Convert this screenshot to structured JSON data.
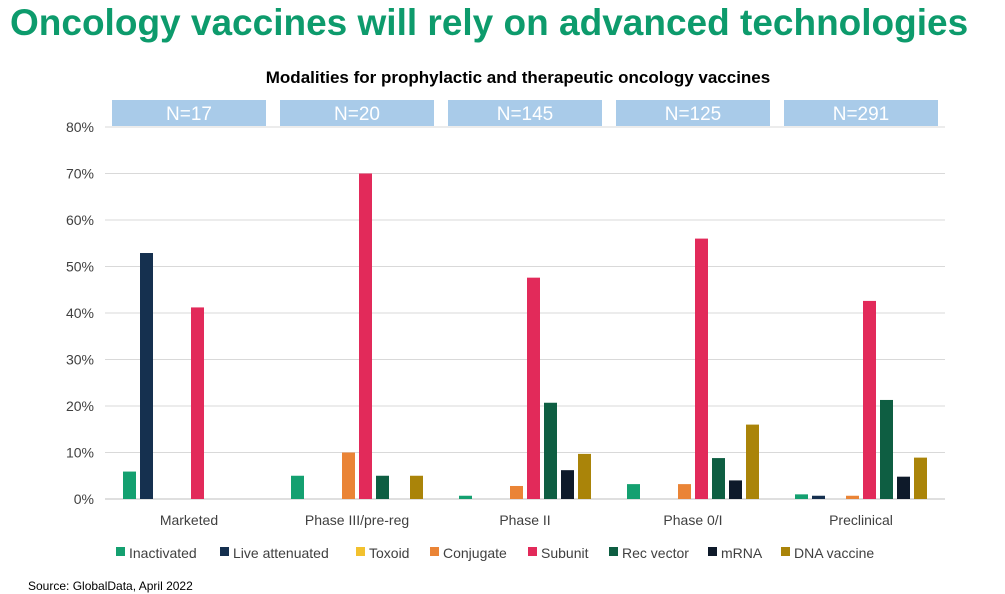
{
  "page": {
    "title": "Oncology vaccines will rely on advanced technologies",
    "source": "Source: GlobalData, April 2022"
  },
  "chart_data": {
    "type": "bar",
    "title": "Modalities for prophylactic and therapeutic oncology vaccines",
    "xlabel": "",
    "ylabel": "",
    "ylim": [
      0,
      80
    ],
    "y_ticks": [
      "0%",
      "10%",
      "20%",
      "30%",
      "40%",
      "50%",
      "60%",
      "70%",
      "80%"
    ],
    "grid": true,
    "legend_position": "bottom",
    "categories": [
      "Marketed",
      "Phase III/pre-reg",
      "Phase II",
      "Phase 0/I",
      "Preclinical"
    ],
    "sample_sizes": [
      "N=17",
      "N=20",
      "N=145",
      "N=125",
      "N=291"
    ],
    "series": [
      {
        "name": "Inactivated",
        "color": "#14a070",
        "values": [
          5.9,
          5.0,
          0.7,
          3.2,
          1.0
        ]
      },
      {
        "name": "Live attenuated",
        "color": "#15304f",
        "values": [
          52.9,
          0,
          0,
          0,
          0.7
        ]
      },
      {
        "name": "Toxoid",
        "color": "#f2c12e",
        "values": [
          0,
          0,
          0,
          0,
          0
        ]
      },
      {
        "name": "Conjugate",
        "color": "#ea8436",
        "values": [
          0,
          10.0,
          2.8,
          3.2,
          0.7
        ]
      },
      {
        "name": "Subunit",
        "color": "#e22a5a",
        "values": [
          41.2,
          70.0,
          47.6,
          56.0,
          42.6
        ]
      },
      {
        "name": "Rec vector",
        "color": "#0e5e42",
        "values": [
          0,
          5.0,
          20.7,
          8.8,
          21.3
        ]
      },
      {
        "name": "mRNA",
        "color": "#0e1a2a",
        "values": [
          0,
          0,
          6.2,
          4.0,
          4.8
        ]
      },
      {
        "name": "DNA vaccine",
        "color": "#aa8409",
        "values": [
          0,
          5.0,
          9.7,
          16.0,
          8.9
        ]
      }
    ],
    "banner_color": "#a9cbe9",
    "banner_text_color": "#ffffff"
  }
}
